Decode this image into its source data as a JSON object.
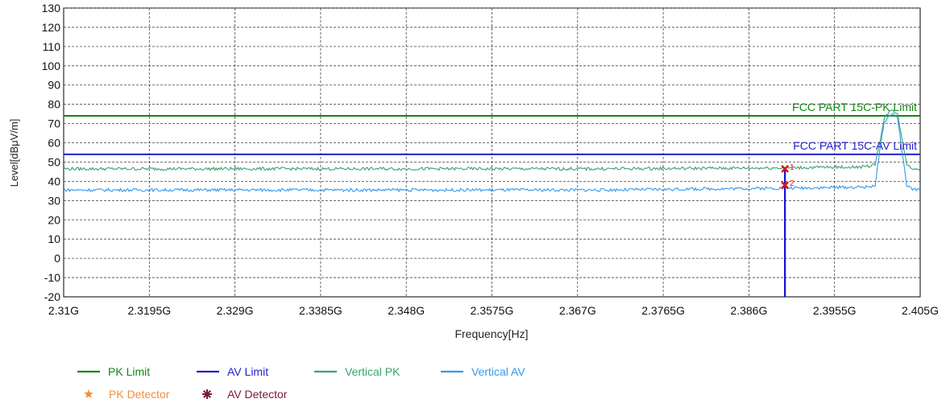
{
  "chart_data": {
    "type": "line",
    "xlabel": "Frequency[Hz]",
    "ylabel": "Level[dBμV/m]",
    "x_ticks": [
      "2.31G",
      "2.3195G",
      "2.329G",
      "2.3385G",
      "2.348G",
      "2.3575G",
      "2.367G",
      "2.3765G",
      "2.386G",
      "2.3955G",
      "2.405G"
    ],
    "x_range": [
      2.31,
      2.405
    ],
    "y_ticks": [
      130,
      120,
      110,
      100,
      90,
      80,
      70,
      60,
      50,
      40,
      30,
      20,
      10,
      0,
      -10,
      -20
    ],
    "ylim": [
      -20,
      130
    ],
    "grid": true,
    "legend_position": "bottom-left",
    "series": [
      {
        "name": "PK Limit",
        "color": "#118811",
        "x": [
          2.31,
          2.405
        ],
        "y": [
          74,
          74
        ]
      },
      {
        "name": "AV Limit",
        "color": "#2222cc",
        "x": [
          2.31,
          2.405
        ],
        "y": [
          54,
          54
        ]
      },
      {
        "name": "Vertical PK",
        "color": "#3aa36f",
        "x": [
          2.31,
          2.33,
          2.35,
          2.37,
          2.39,
          2.399,
          2.4,
          2.4005,
          2.401,
          2.4015,
          2.402,
          2.4025,
          2.403,
          2.4035,
          2.404,
          2.405
        ],
        "y": [
          46.5,
          46.5,
          46.5,
          46.5,
          47,
          47.5,
          49,
          60,
          72,
          76,
          77,
          75,
          62,
          49,
          47,
          46.5
        ]
      },
      {
        "name": "Vertical AV",
        "color": "#3399ee",
        "x": [
          2.31,
          2.33,
          2.35,
          2.37,
          2.39,
          2.399,
          2.4,
          2.4005,
          2.401,
          2.4015,
          2.402,
          2.4025,
          2.403,
          2.4035,
          2.404,
          2.405
        ],
        "y": [
          35.5,
          35.5,
          35.5,
          35.5,
          36.5,
          37,
          38,
          55,
          70,
          74,
          75,
          73,
          55,
          38,
          36,
          35.5
        ]
      }
    ],
    "limit_labels": [
      {
        "text": "FCC  PART 15C-PK Limit",
        "y": 74,
        "color": "#118811"
      },
      {
        "text": "FCC  PART 15C-AV Limit",
        "y": 54,
        "color": "#2222cc"
      }
    ],
    "markers": [
      {
        "label": "1",
        "x": 2.39,
        "y": 46.5
      },
      {
        "label": "2",
        "x": 2.39,
        "y": 38
      }
    ],
    "vertical_line": {
      "x": 2.39,
      "color": "#1111cc"
    },
    "legend": [
      {
        "label": "PK Limit",
        "kind": "line",
        "color": "#118811",
        "text_color": "#118811"
      },
      {
        "label": "AV Limit",
        "kind": "line",
        "color": "#2222cc",
        "text_color": "#2222cc"
      },
      {
        "label": "Vertical PK",
        "kind": "line",
        "color": "#3aa36f",
        "text_color": "#3aa36f"
      },
      {
        "label": "Vertical AV",
        "kind": "line",
        "color": "#3399ee",
        "text_color": "#3399ee"
      },
      {
        "label": "PK Detector",
        "kind": "star",
        "color": "#f0913a",
        "text_color": "#f0913a"
      },
      {
        "label": "AV Detector",
        "kind": "burst",
        "color": "#7a1a3a",
        "text_color": "#7a1a3a"
      }
    ]
  }
}
